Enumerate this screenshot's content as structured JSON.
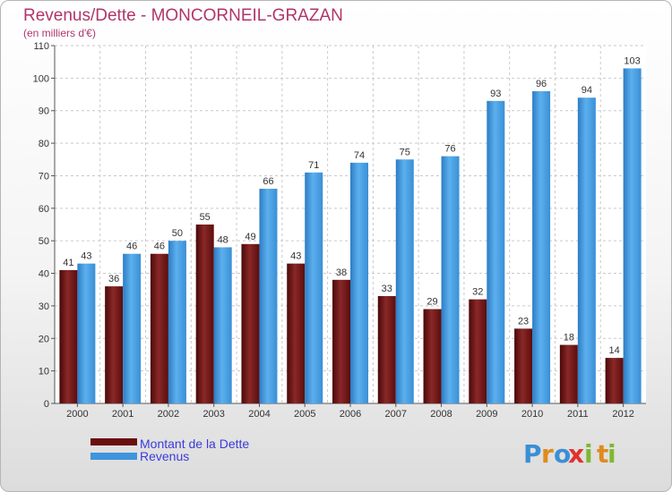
{
  "colors": {
    "dette": "#7a1a1a",
    "revenus": "#3e95dc",
    "title": "#b0356b",
    "legend_text": "#3b3bdc"
  },
  "logo": {
    "text": "Proxiti"
  },
  "chart_data": {
    "type": "bar",
    "title": "Revenus/Dette - MONCORNEIL-GRAZAN",
    "subtitle": "(en milliers d'€)",
    "xlabel": "",
    "ylabel": "",
    "ylim": [
      0,
      110
    ],
    "yticks": [
      0,
      10,
      20,
      30,
      40,
      50,
      60,
      70,
      80,
      90,
      100,
      110
    ],
    "grid": true,
    "legend_position": "bottom-left",
    "categories": [
      "2000",
      "2001",
      "2002",
      "2003",
      "2004",
      "2005",
      "2006",
      "2007",
      "2008",
      "2009",
      "2010",
      "2011",
      "2012"
    ],
    "series": [
      {
        "name": "Montant de la Dette",
        "values": [
          41,
          36,
          46,
          55,
          49,
          43,
          38,
          33,
          29,
          32,
          23,
          18,
          14
        ]
      },
      {
        "name": "Revenus",
        "values": [
          43,
          46,
          50,
          48,
          66,
          71,
          74,
          75,
          76,
          93,
          96,
          94,
          103
        ]
      }
    ]
  }
}
